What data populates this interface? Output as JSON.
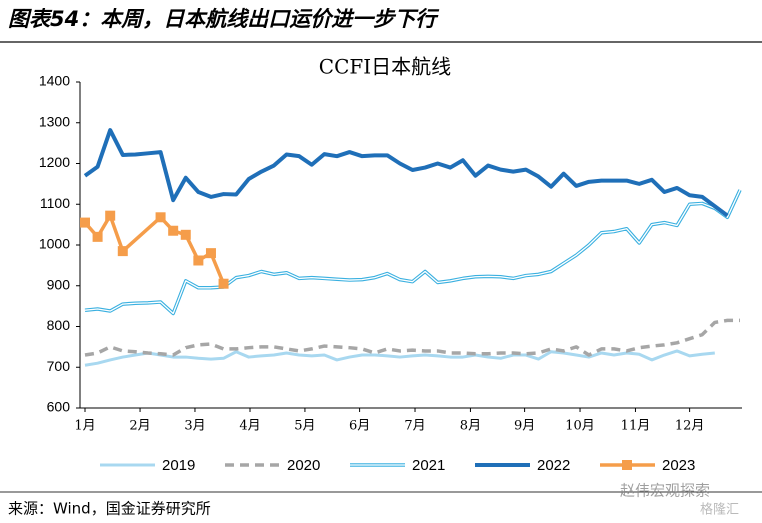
{
  "header": {
    "title": "图表54：本周，日本航线出口运价进一步下行"
  },
  "chart_data": {
    "type": "line",
    "title": "CCFI日本航线",
    "x": [
      1,
      2,
      3,
      4,
      5,
      6,
      7,
      8,
      9,
      10,
      11,
      12,
      13,
      14,
      15,
      16,
      17,
      18,
      19,
      20,
      21,
      22,
      23,
      24,
      25,
      26,
      27,
      28,
      29,
      30,
      31,
      32,
      33,
      34,
      35,
      36,
      37,
      38,
      39,
      40,
      41,
      42,
      43,
      44,
      45,
      46,
      47,
      48,
      49,
      50,
      51,
      52,
      53
    ],
    "xlim": [
      1,
      53
    ],
    "xticks": [
      {
        "value": 1,
        "label": "1月"
      },
      {
        "value": 5.37,
        "label": "2月"
      },
      {
        "value": 9.73,
        "label": "3月"
      },
      {
        "value": 14.1,
        "label": "4月"
      },
      {
        "value": 18.46,
        "label": "5月"
      },
      {
        "value": 22.8,
        "label": "6月"
      },
      {
        "value": 27.2,
        "label": "7月"
      },
      {
        "value": 31.6,
        "label": "8月"
      },
      {
        "value": 35.9,
        "label": "9月"
      },
      {
        "value": 40.3,
        "label": "10月"
      },
      {
        "value": 44.7,
        "label": "11月"
      },
      {
        "value": 49.0,
        "label": "12月"
      }
    ],
    "ylim": [
      600,
      1400
    ],
    "yticks": [
      600,
      700,
      800,
      900,
      1000,
      1100,
      1200,
      1300,
      1400
    ],
    "series": [
      {
        "name": "2019",
        "color": "#a8d8f0",
        "style": "solid",
        "values": [
          705,
          710,
          718,
          725,
          730,
          735,
          730,
          725,
          725,
          722,
          720,
          722,
          738,
          725,
          728,
          730,
          735,
          730,
          728,
          730,
          718,
          725,
          730,
          730,
          728,
          725,
          728,
          730,
          728,
          725,
          725,
          730,
          725,
          722,
          730,
          730,
          720,
          738,
          735,
          730,
          725,
          735,
          730,
          735,
          732,
          718,
          730,
          740,
          728,
          732,
          735,
          null,
          null
        ]
      },
      {
        "name": "2020",
        "color": "#a6a6a6",
        "style": "dashed",
        "values": [
          730,
          735,
          750,
          740,
          738,
          735,
          733,
          730,
          748,
          755,
          757,
          745,
          745,
          748,
          750,
          750,
          745,
          740,
          745,
          752,
          750,
          748,
          745,
          735,
          745,
          740,
          742,
          740,
          740,
          735,
          735,
          733,
          733,
          735,
          735,
          733,
          735,
          745,
          740,
          750,
          730,
          745,
          745,
          740,
          748,
          752,
          755,
          760,
          770,
          780,
          810,
          815,
          815
        ]
      },
      {
        "name": "2021",
        "color": "#3ab0e0",
        "style": "double",
        "values": [
          840,
          843,
          838,
          855,
          857,
          858,
          860,
          832,
          912,
          895,
          895,
          897,
          920,
          925,
          935,
          928,
          932,
          918,
          920,
          918,
          916,
          914,
          915,
          920,
          930,
          915,
          910,
          935,
          908,
          912,
          918,
          922,
          923,
          922,
          918,
          925,
          928,
          935,
          955,
          975,
          1000,
          1030,
          1033,
          1040,
          1005,
          1050,
          1055,
          1048,
          1100,
          1102,
          1090,
          1068,
          1135
        ]
      },
      {
        "name": "2022",
        "color": "#1f6fb8",
        "style": "thick",
        "values": [
          1170,
          1192,
          1282,
          1221,
          1222,
          1225,
          1228,
          1110,
          1165,
          1130,
          1118,
          1125,
          1124,
          1162,
          1180,
          1195,
          1222,
          1218,
          1197,
          1223,
          1218,
          1228,
          1218,
          1220,
          1220,
          1200,
          1184,
          1190,
          1200,
          1190,
          1208,
          1170,
          1195,
          1185,
          1180,
          1185,
          1168,
          1143,
          1175,
          1145,
          1155,
          1158,
          1158,
          1158,
          1150,
          1160,
          1130,
          1140,
          1122,
          1118,
          1095,
          1072,
          null
        ]
      },
      {
        "name": "2023",
        "color": "#f59d4a",
        "style": "marker",
        "x": [
          1,
          2,
          3,
          4,
          7,
          8,
          9,
          10,
          11,
          12
        ],
        "values": [
          1055,
          1020,
          1072,
          985,
          1068,
          1035,
          1025,
          962,
          980,
          905
        ]
      }
    ]
  },
  "source": "来源：Wind，国金证券研究所",
  "watermark": "赵伟宏观探索",
  "watermark2": "格隆汇"
}
